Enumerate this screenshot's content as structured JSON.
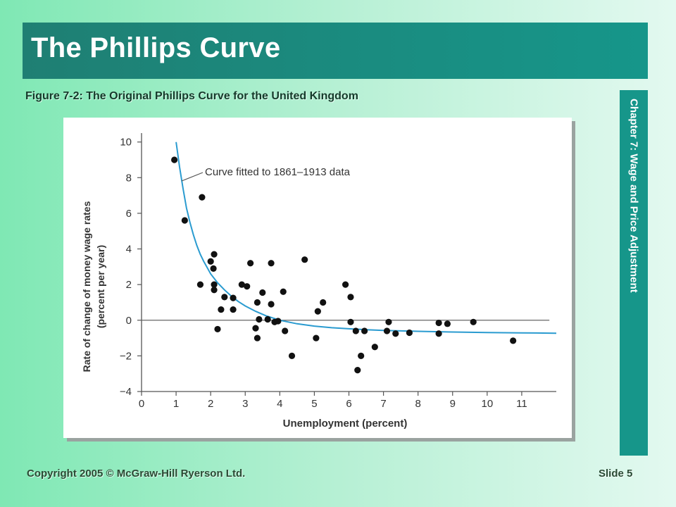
{
  "slide": {
    "title": "The Phillips Curve",
    "side_label": "Chapter 7: Wage and Price Adjustment",
    "copyright": "Copyright 2005 © McGraw-Hill Ryerson Ltd.",
    "slide_number": "Slide 5"
  },
  "colors": {
    "curve": "#2a9bd0",
    "points": "#111111",
    "axis": "#555555"
  },
  "chart_data": {
    "type": "scatter",
    "title": "Figure 7-2: The Original Phillips Curve for the United Kingdom",
    "xlabel": "Unemployment (percent)",
    "ylabel": "Rate of change of money wage rates",
    "ylabel_2": "(percent per year)",
    "xlim": [
      0,
      12
    ],
    "ylim": [
      -4,
      10.5
    ],
    "xticks": [
      0,
      1,
      2,
      3,
      4,
      5,
      6,
      7,
      8,
      9,
      10,
      11
    ],
    "yticks": [
      10,
      8,
      6,
      4,
      2,
      0,
      -2,
      -4
    ],
    "ytick_labels": [
      "10",
      "8",
      "6",
      "4",
      "2",
      "0",
      "−2",
      "−4"
    ],
    "grid": false,
    "annotation": "Curve fitted to 1861–1913 data",
    "curve": {
      "name": "Curve fitted to 1861–1913 data",
      "x": [
        1.0,
        1.1,
        1.2,
        1.3,
        1.4,
        1.5,
        1.6,
        1.7,
        1.8,
        1.9,
        2.0,
        2.2,
        2.4,
        2.6,
        2.8,
        3.0,
        3.3,
        3.6,
        4.0,
        4.5,
        5.0,
        5.5,
        6.0,
        6.5,
        7.0,
        8.0,
        9.0,
        10.0,
        11.0,
        12.0
      ],
      "y": [
        10.0,
        8.6,
        7.4,
        6.3,
        5.5,
        4.8,
        4.2,
        3.7,
        3.3,
        2.95,
        2.6,
        2.1,
        1.7,
        1.35,
        1.05,
        0.8,
        0.5,
        0.25,
        0.0,
        -0.2,
        -0.33,
        -0.42,
        -0.48,
        -0.53,
        -0.57,
        -0.62,
        -0.66,
        -0.69,
        -0.71,
        -0.73
      ]
    },
    "points": [
      {
        "x": 0.95,
        "y": 9.0
      },
      {
        "x": 1.25,
        "y": 5.6
      },
      {
        "x": 1.75,
        "y": 6.9
      },
      {
        "x": 1.7,
        "y": 2.0
      },
      {
        "x": 2.0,
        "y": 3.3
      },
      {
        "x": 2.1,
        "y": 3.7
      },
      {
        "x": 2.08,
        "y": 2.9
      },
      {
        "x": 2.1,
        "y": 2.0
      },
      {
        "x": 2.1,
        "y": 1.7
      },
      {
        "x": 2.3,
        "y": 0.6
      },
      {
        "x": 2.2,
        "y": -0.5
      },
      {
        "x": 2.4,
        "y": 1.3
      },
      {
        "x": 2.65,
        "y": 1.25
      },
      {
        "x": 2.65,
        "y": 0.6
      },
      {
        "x": 2.9,
        "y": 2.0
      },
      {
        "x": 3.05,
        "y": 1.9
      },
      {
        "x": 3.15,
        "y": 3.2
      },
      {
        "x": 3.3,
        "y": -0.45
      },
      {
        "x": 3.35,
        "y": 1.0
      },
      {
        "x": 3.4,
        "y": 0.05
      },
      {
        "x": 3.35,
        "y": -1.0
      },
      {
        "x": 3.5,
        "y": 1.55
      },
      {
        "x": 3.65,
        "y": 0.05
      },
      {
        "x": 3.75,
        "y": 3.2
      },
      {
        "x": 3.75,
        "y": 0.9
      },
      {
        "x": 3.85,
        "y": -0.1
      },
      {
        "x": 3.95,
        "y": -0.05
      },
      {
        "x": 4.1,
        "y": 1.6
      },
      {
        "x": 4.15,
        "y": -0.6
      },
      {
        "x": 4.35,
        "y": -2.0
      },
      {
        "x": 4.72,
        "y": 3.4
      },
      {
        "x": 5.05,
        "y": -1.0
      },
      {
        "x": 5.1,
        "y": 0.5
      },
      {
        "x": 5.25,
        "y": 1.0
      },
      {
        "x": 5.9,
        "y": 2.0
      },
      {
        "x": 6.05,
        "y": 1.3
      },
      {
        "x": 6.05,
        "y": -0.1
      },
      {
        "x": 6.2,
        "y": -0.6
      },
      {
        "x": 6.45,
        "y": -0.6
      },
      {
        "x": 6.35,
        "y": -2.0
      },
      {
        "x": 6.25,
        "y": -2.8
      },
      {
        "x": 6.75,
        "y": -1.5
      },
      {
        "x": 7.1,
        "y": -0.6
      },
      {
        "x": 7.15,
        "y": -0.1
      },
      {
        "x": 7.35,
        "y": -0.75
      },
      {
        "x": 7.75,
        "y": -0.7
      },
      {
        "x": 8.6,
        "y": -0.75
      },
      {
        "x": 8.6,
        "y": -0.15
      },
      {
        "x": 8.85,
        "y": -0.2
      },
      {
        "x": 9.6,
        "y": -0.1
      },
      {
        "x": 10.75,
        "y": -1.15
      }
    ]
  }
}
